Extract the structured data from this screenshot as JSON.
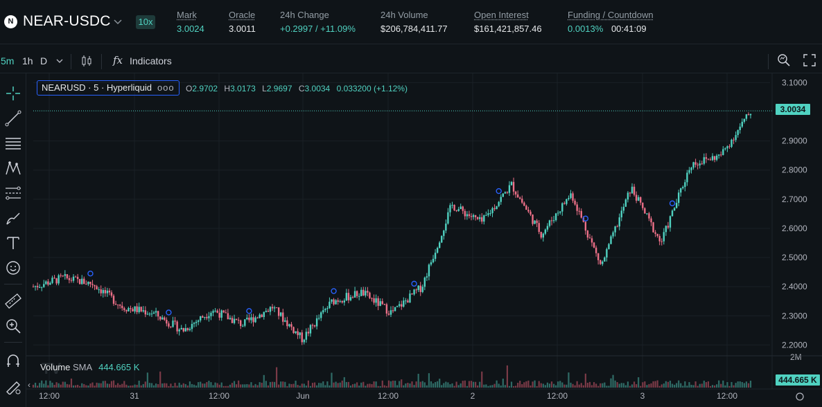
{
  "header": {
    "symbol_logo": "N",
    "symbol": "NEAR-USDC",
    "leverage": "10x",
    "stats": [
      {
        "label": "Mark",
        "value": "3.0024",
        "green": true,
        "underline": true
      },
      {
        "label": "Oracle",
        "value": "3.0011",
        "green": false,
        "underline": true
      },
      {
        "label": "24h Change",
        "value": "+0.2997 / +11.09%",
        "green": true,
        "underline": false
      },
      {
        "label": "24h Volume",
        "value": "$206,784,411.77",
        "green": false,
        "underline": false
      },
      {
        "label": "Open Interest",
        "value": "$161,421,857.46",
        "green": false,
        "underline": true
      },
      {
        "label": "Funding / Countdown",
        "value": "0.0013%",
        "value2": "00:41:09",
        "green": true,
        "underline": true
      }
    ]
  },
  "toolbar": {
    "intervals": [
      "5m",
      "1h",
      "D"
    ],
    "indicators_label": "Indicators",
    "fx_label": "fx"
  },
  "chart": {
    "legend_title": "NEARUSD · 5 · Hyperliquid",
    "legend_dots": "ooo",
    "ohlc": {
      "o_label": "O",
      "o": "2.9702",
      "h_label": "H",
      "h": "3.0173",
      "l_label": "L",
      "l": "2.9697",
      "c_label": "C",
      "c": "3.0034",
      "change": "0.033200 (+1.12%)"
    },
    "current_price": "3.0034",
    "price_axis": [
      "3.1000",
      "2.9000",
      "2.8000",
      "2.7000",
      "2.6000",
      "2.5000",
      "2.4000",
      "2.3000",
      "2.2000",
      "2M"
    ],
    "time_axis": [
      "12:00",
      "31",
      "12:00",
      "Jun",
      "12:00",
      "2",
      "12:00",
      "3",
      "12:00"
    ],
    "volume_label": "Volume",
    "volume_sma_label": "SMA",
    "volume_sma_value": "444.665 K",
    "volume_tag": "444.665 K",
    "watermark": "TV",
    "colors": {
      "up": "#50d2c1",
      "down": "#ed7088",
      "accent": "#2962ff"
    }
  },
  "chart_data": {
    "type": "candlestick",
    "symbol": "NEARUSD",
    "interval": "5",
    "ylim": [
      2.17,
      3.12
    ],
    "x_labels": [
      "12:00",
      "31",
      "12:00",
      "Jun",
      "12:00",
      "2",
      "12:00",
      "3",
      "12:00"
    ],
    "trend_keypoints": [
      {
        "x": "30 12:00",
        "y": 2.4
      },
      {
        "x": "30 14:00",
        "y": 2.43
      },
      {
        "x": "30 20:00",
        "y": 2.41
      },
      {
        "x": "31 00:00",
        "y": 2.33
      },
      {
        "x": "31 04:00",
        "y": 2.31
      },
      {
        "x": "31 08:00",
        "y": 2.25
      },
      {
        "x": "31 12:00",
        "y": 2.32
      },
      {
        "x": "31 16:00",
        "y": 2.27
      },
      {
        "x": "31 20:00",
        "y": 2.33
      },
      {
        "x": "Jun 1 00:00",
        "y": 2.22
      },
      {
        "x": "Jun 1 04:00",
        "y": 2.35
      },
      {
        "x": "Jun 1 08:00",
        "y": 2.38
      },
      {
        "x": "Jun 1 12:00",
        "y": 2.31
      },
      {
        "x": "Jun 1 16:00",
        "y": 2.4
      },
      {
        "x": "Jun 1 20:00",
        "y": 2.68
      },
      {
        "x": "2 04:00",
        "y": 2.62
      },
      {
        "x": "2 08:00",
        "y": 2.75
      },
      {
        "x": "2 10:00",
        "y": 2.58
      },
      {
        "x": "2 16:00",
        "y": 2.72
      },
      {
        "x": "2 20:00",
        "y": 2.47
      },
      {
        "x": "3 00:00",
        "y": 2.74
      },
      {
        "x": "3 02:00",
        "y": 2.55
      },
      {
        "x": "3 08:00",
        "y": 2.82
      },
      {
        "x": "3 12:00",
        "y": 2.85
      },
      {
        "x": "3 16:00",
        "y": 3.0
      }
    ],
    "volume_sma": "444.665 K"
  }
}
